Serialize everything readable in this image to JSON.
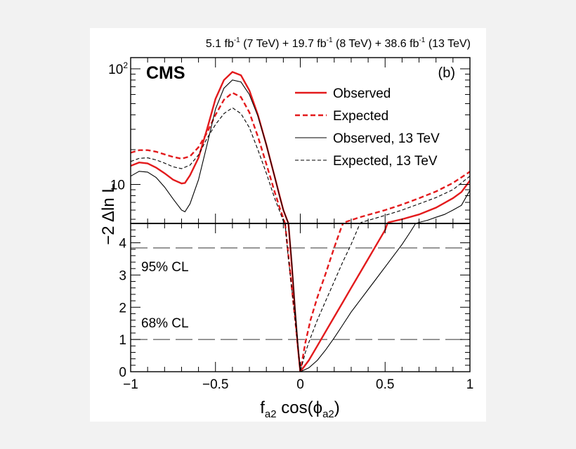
{
  "chart_data": {
    "type": "line",
    "header": {
      "lumi_7": "5.1 fb",
      "sup_7": "-1",
      "energy_7": " (7 TeV) + ",
      "lumi_8": "19.7 fb",
      "sup_8": "-1",
      "energy_8": " (8 TeV) + ",
      "lumi_13": "38.6 fb",
      "sup_13": "-1",
      "energy_13": " (13 TeV)"
    },
    "experiment_label": "CMS",
    "panel_label": "(b)",
    "ylabel": "−2 Δln L",
    "xlabel": {
      "f": "f",
      "sub_f": "a2",
      "cos": " cos(",
      "phi": "ϕ",
      "sub_phi": "a2",
      "close": ")"
    },
    "xlim": [
      -1,
      1
    ],
    "x_ticks": [
      {
        "value": -1,
        "label": "−1"
      },
      {
        "value": -0.5,
        "label": "−0.5"
      },
      {
        "value": 0,
        "label": "0"
      },
      {
        "value": 0.5,
        "label": "0.5"
      },
      {
        "value": 1,
        "label": "1"
      }
    ],
    "upper_panel": {
      "scale": "log",
      "ylim": [
        4.6,
        125
      ],
      "y_ticks": [
        {
          "value": 10,
          "base": "10",
          "exp": ""
        },
        {
          "value": 100,
          "base": "10",
          "exp": "2"
        }
      ]
    },
    "lower_panel": {
      "scale": "linear",
      "ylim": [
        0,
        4.6
      ],
      "y_ticks": [
        {
          "value": 0,
          "label": "0"
        },
        {
          "value": 1,
          "label": "1"
        },
        {
          "value": 2,
          "label": "2"
        },
        {
          "value": 3,
          "label": "3"
        },
        {
          "value": 4,
          "label": "4"
        }
      ]
    },
    "reference_lines": [
      {
        "name": "cl95",
        "y": 3.84,
        "label": "95% CL"
      },
      {
        "name": "cl68",
        "y": 1.0,
        "label": "68% CL"
      }
    ],
    "series": [
      {
        "name": "Observed",
        "color": "#e31a1c",
        "dash": "solid",
        "width": "thick",
        "points": [
          [
            -1,
            14.5
          ],
          [
            -0.95,
            15.5
          ],
          [
            -0.9,
            15.2
          ],
          [
            -0.85,
            14
          ],
          [
            -0.8,
            12.5
          ],
          [
            -0.75,
            11
          ],
          [
            -0.7,
            10.2
          ],
          [
            -0.68,
            10.3
          ],
          [
            -0.65,
            12
          ],
          [
            -0.6,
            17
          ],
          [
            -0.55,
            30
          ],
          [
            -0.5,
            55
          ],
          [
            -0.45,
            80
          ],
          [
            -0.4,
            94
          ],
          [
            -0.35,
            88
          ],
          [
            -0.3,
            65
          ],
          [
            -0.25,
            40
          ],
          [
            -0.2,
            22
          ],
          [
            -0.15,
            11.5
          ],
          [
            -0.12,
            7.8
          ],
          [
            -0.1,
            6
          ],
          [
            -0.07,
            4.6
          ],
          [
            -0.05,
            3.3
          ],
          [
            -0.03,
            1.8
          ],
          [
            -0.015,
            0.8
          ],
          [
            0,
            0
          ],
          [
            0.05,
            0.35
          ],
          [
            0.1,
            0.8
          ],
          [
            0.15,
            1.25
          ],
          [
            0.2,
            1.7
          ],
          [
            0.25,
            2.15
          ],
          [
            0.3,
            2.6
          ],
          [
            0.35,
            3.05
          ],
          [
            0.4,
            3.5
          ],
          [
            0.45,
            3.95
          ],
          [
            0.5,
            4.4
          ],
          [
            0.52,
            4.7
          ],
          [
            0.6,
            5.0
          ],
          [
            0.7,
            5.5
          ],
          [
            0.8,
            6.3
          ],
          [
            0.9,
            7.6
          ],
          [
            0.95,
            8.6
          ],
          [
            1,
            10.8
          ]
        ]
      },
      {
        "name": "Expected",
        "color": "#e31a1c",
        "dash": "dashed",
        "width": "thick",
        "points": [
          [
            -1,
            18.8
          ],
          [
            -0.95,
            19.8
          ],
          [
            -0.9,
            19.8
          ],
          [
            -0.85,
            19.2
          ],
          [
            -0.8,
            18.2
          ],
          [
            -0.75,
            17.3
          ],
          [
            -0.7,
            16.7
          ],
          [
            -0.65,
            17.5
          ],
          [
            -0.6,
            21
          ],
          [
            -0.55,
            28
          ],
          [
            -0.5,
            40
          ],
          [
            -0.45,
            54
          ],
          [
            -0.4,
            62
          ],
          [
            -0.35,
            57
          ],
          [
            -0.3,
            42
          ],
          [
            -0.25,
            26
          ],
          [
            -0.2,
            15
          ],
          [
            -0.15,
            8.5
          ],
          [
            -0.12,
            6.2
          ],
          [
            -0.1,
            5.1
          ],
          [
            -0.09,
            4.6
          ],
          [
            -0.07,
            3.6
          ],
          [
            -0.05,
            2.6
          ],
          [
            -0.03,
            1.6
          ],
          [
            -0.015,
            0.8
          ],
          [
            0,
            0
          ],
          [
            0.03,
            0.9
          ],
          [
            0.06,
            1.6
          ],
          [
            0.1,
            2.3
          ],
          [
            0.15,
            3.05
          ],
          [
            0.2,
            3.85
          ],
          [
            0.24,
            4.45
          ],
          [
            0.26,
            4.7
          ],
          [
            0.35,
            5.2
          ],
          [
            0.5,
            6.0
          ],
          [
            0.6,
            6.7
          ],
          [
            0.7,
            7.6
          ],
          [
            0.8,
            8.7
          ],
          [
            0.9,
            10.3
          ],
          [
            1,
            12.9
          ]
        ]
      },
      {
        "name": "Observed, 13 TeV",
        "color": "#000000",
        "dash": "solid",
        "width": "thin",
        "points": [
          [
            -1,
            11.8
          ],
          [
            -0.95,
            13
          ],
          [
            -0.9,
            12.8
          ],
          [
            -0.85,
            11.5
          ],
          [
            -0.8,
            9.5
          ],
          [
            -0.75,
            7.5
          ],
          [
            -0.7,
            6
          ],
          [
            -0.68,
            5.8
          ],
          [
            -0.65,
            6.8
          ],
          [
            -0.6,
            11
          ],
          [
            -0.55,
            22
          ],
          [
            -0.5,
            45
          ],
          [
            -0.45,
            68
          ],
          [
            -0.4,
            80
          ],
          [
            -0.35,
            77
          ],
          [
            -0.3,
            60
          ],
          [
            -0.25,
            39
          ],
          [
            -0.2,
            22
          ],
          [
            -0.15,
            11.5
          ],
          [
            -0.12,
            7.7
          ],
          [
            -0.1,
            6
          ],
          [
            -0.07,
            4.6
          ],
          [
            -0.05,
            3.4
          ],
          [
            -0.03,
            1.9
          ],
          [
            -0.015,
            0.9
          ],
          [
            0,
            0
          ],
          [
            0.05,
            0.12
          ],
          [
            0.1,
            0.35
          ],
          [
            0.15,
            0.68
          ],
          [
            0.2,
            1.05
          ],
          [
            0.25,
            1.45
          ],
          [
            0.3,
            1.85
          ],
          [
            0.35,
            2.2
          ],
          [
            0.4,
            2.55
          ],
          [
            0.45,
            2.9
          ],
          [
            0.5,
            3.25
          ],
          [
            0.55,
            3.6
          ],
          [
            0.6,
            3.95
          ],
          [
            0.65,
            4.35
          ],
          [
            0.68,
            4.6
          ],
          [
            0.7,
            4.7
          ],
          [
            0.75,
            4.9
          ],
          [
            0.8,
            5.2
          ],
          [
            0.85,
            5.5
          ],
          [
            0.9,
            6.0
          ],
          [
            0.95,
            6.6
          ],
          [
            1,
            8.9
          ]
        ]
      },
      {
        "name": "Expected, 13 TeV",
        "color": "#000000",
        "dash": "dashed",
        "width": "thin",
        "points": [
          [
            -1,
            15.8
          ],
          [
            -0.95,
            16.8
          ],
          [
            -0.9,
            17
          ],
          [
            -0.85,
            16.3
          ],
          [
            -0.8,
            15.3
          ],
          [
            -0.75,
            14.2
          ],
          [
            -0.7,
            13.7
          ],
          [
            -0.65,
            14.7
          ],
          [
            -0.6,
            18
          ],
          [
            -0.55,
            25
          ],
          [
            -0.5,
            33
          ],
          [
            -0.45,
            41
          ],
          [
            -0.4,
            46
          ],
          [
            -0.35,
            41
          ],
          [
            -0.3,
            31
          ],
          [
            -0.25,
            20
          ],
          [
            -0.2,
            12.5
          ],
          [
            -0.15,
            7.5
          ],
          [
            -0.12,
            5.8
          ],
          [
            -0.1,
            4.8
          ],
          [
            -0.09,
            4.6
          ],
          [
            -0.07,
            3.5
          ],
          [
            -0.05,
            2.6
          ],
          [
            -0.03,
            1.6
          ],
          [
            -0.015,
            0.8
          ],
          [
            0,
            0
          ],
          [
            0.03,
            0.6
          ],
          [
            0.06,
            1.05
          ],
          [
            0.1,
            1.6
          ],
          [
            0.15,
            2.2
          ],
          [
            0.2,
            2.8
          ],
          [
            0.25,
            3.4
          ],
          [
            0.3,
            3.95
          ],
          [
            0.34,
            4.45
          ],
          [
            0.36,
            4.7
          ],
          [
            0.5,
            5.4
          ],
          [
            0.6,
            6.0
          ],
          [
            0.7,
            6.8
          ],
          [
            0.8,
            7.7
          ],
          [
            0.9,
            9.0
          ],
          [
            1,
            11.8
          ]
        ]
      }
    ],
    "legend": {
      "placement": "top-right",
      "entries": [
        "Observed",
        "Expected",
        "Observed, 13 TeV",
        "Expected, 13 TeV"
      ]
    }
  }
}
